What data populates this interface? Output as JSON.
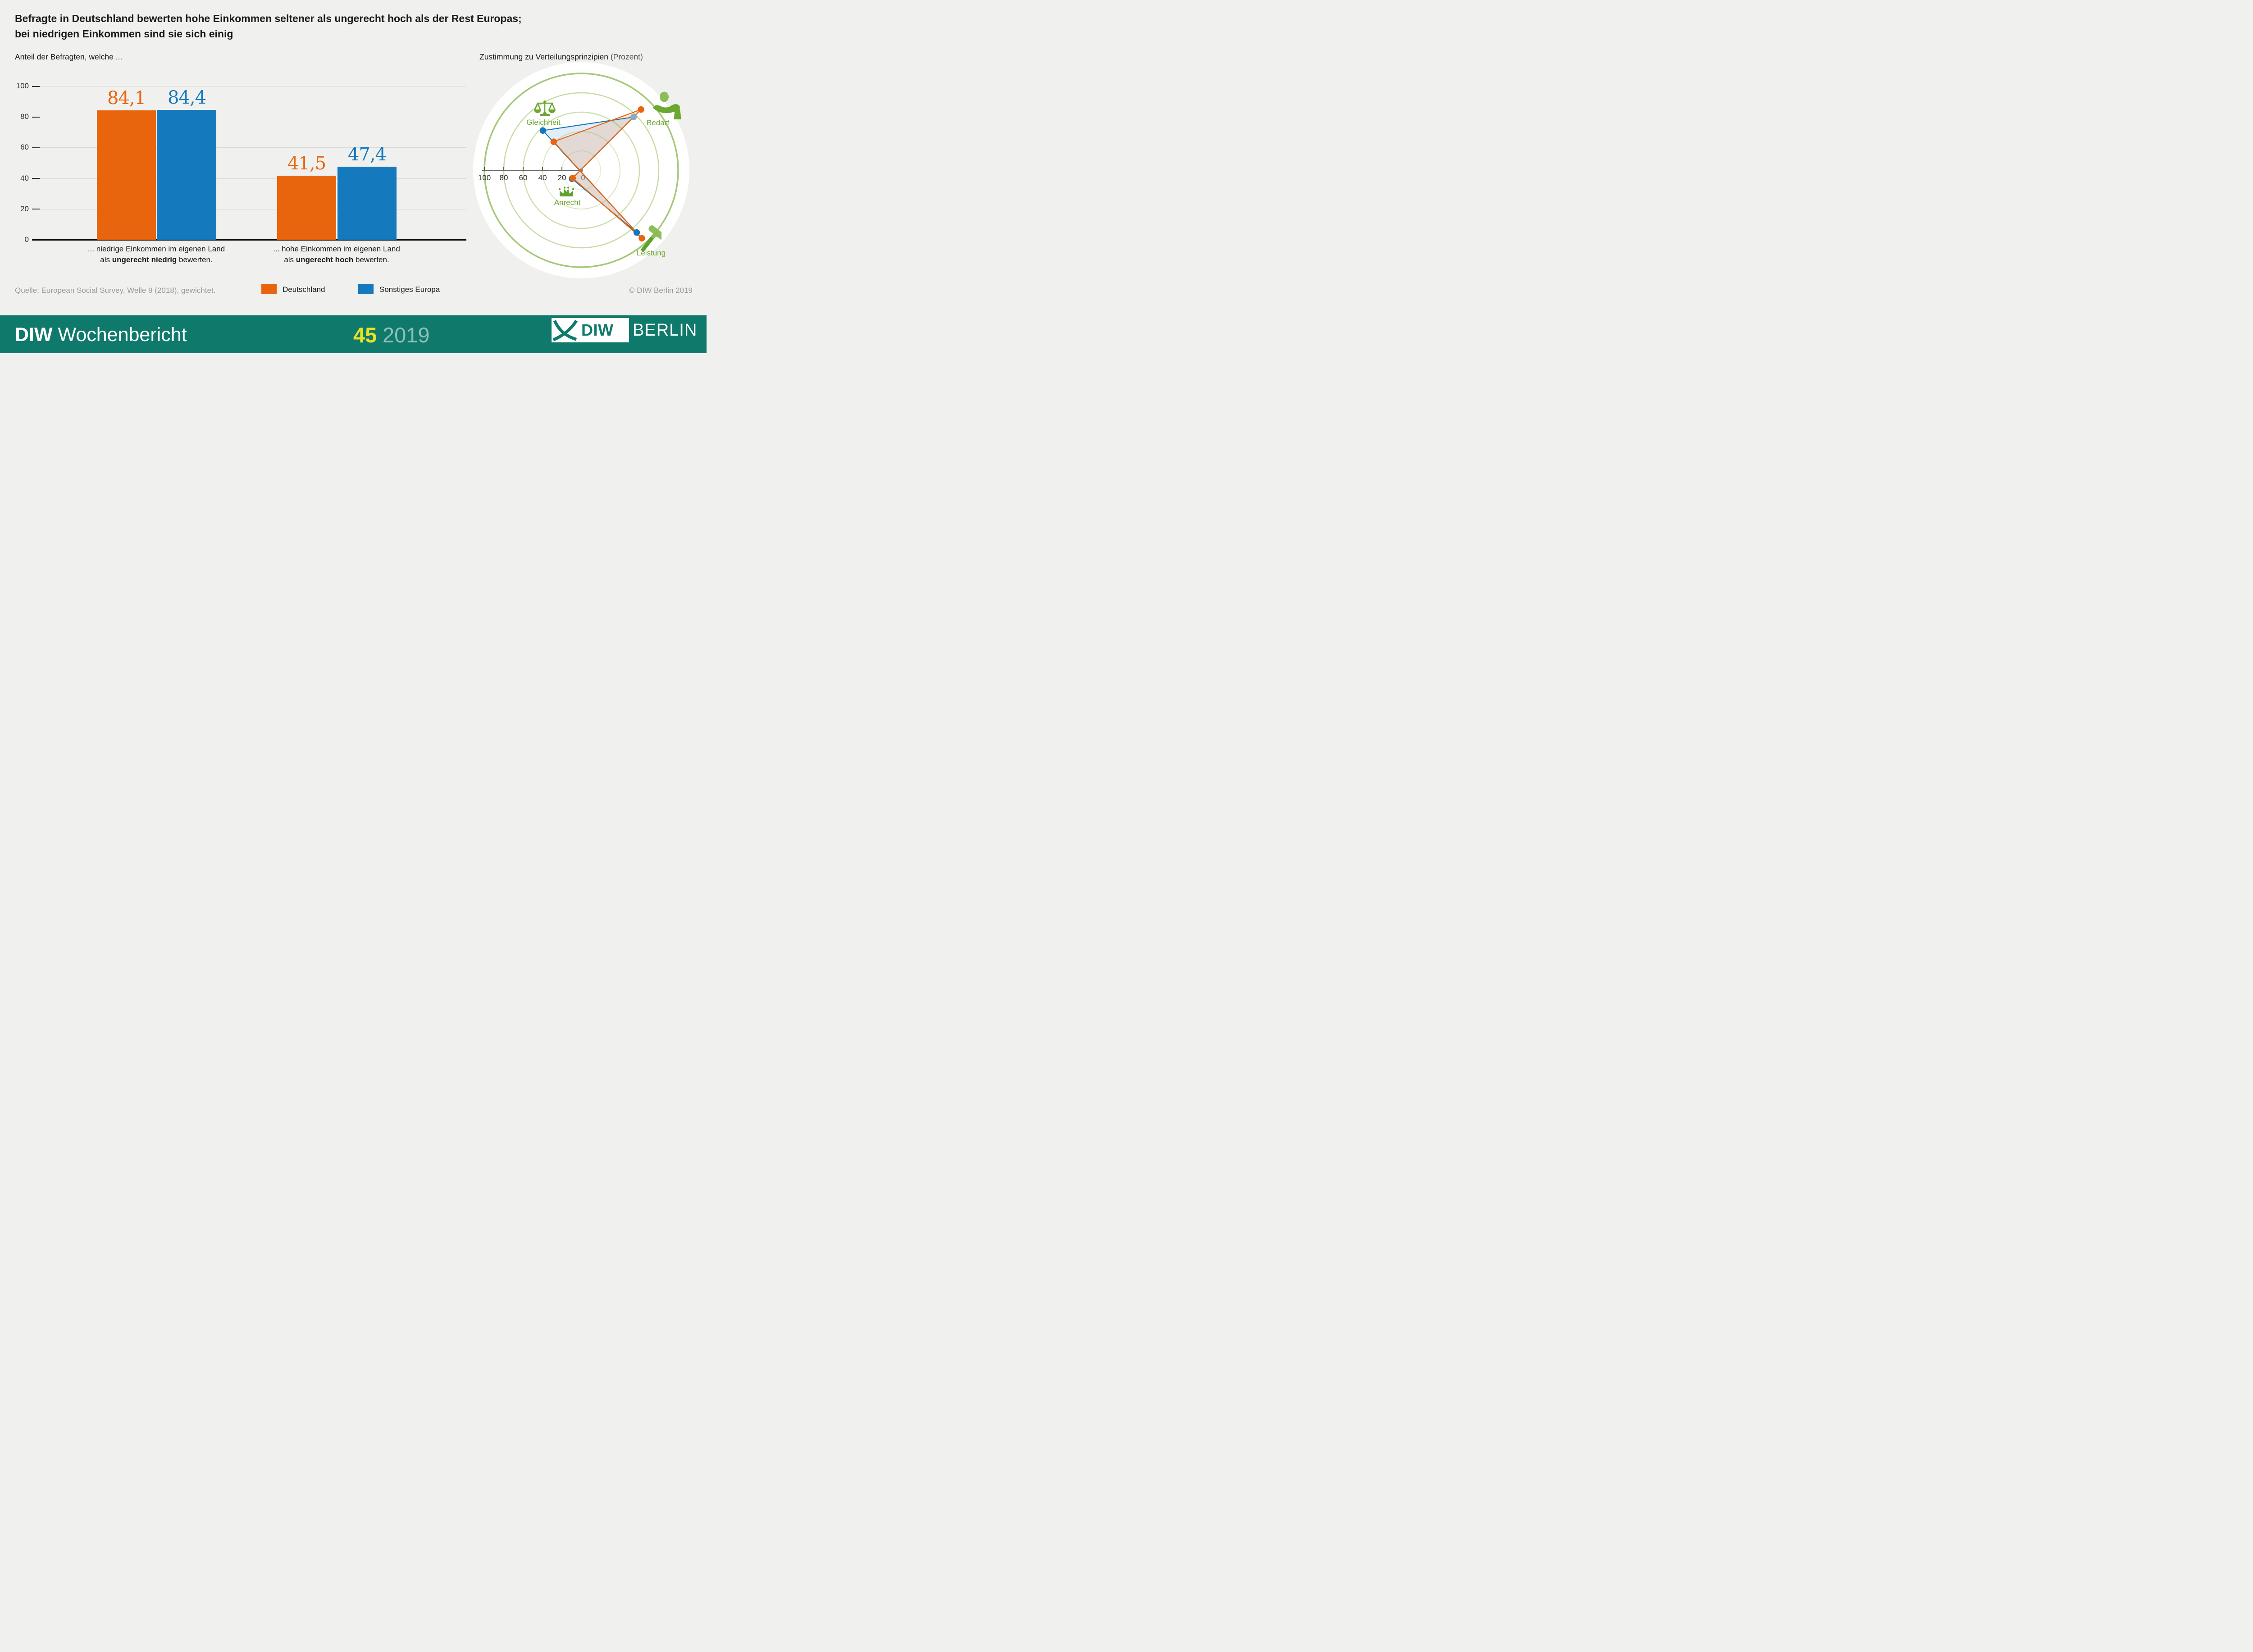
{
  "title": {
    "line1": "Befragte in Deutschland bewerten hohe Einkommen seltener als ungerecht hoch als der Rest Europas;",
    "line2": "bei niedrigen Einkommen sind sie sich einig"
  },
  "source": "Quelle: European Social Survey, Welle 9 (2018), gewichtet.",
  "copyright": "© DIW Berlin 2019",
  "footer": {
    "brand_bold": "DIW",
    "brand_regular": "Wochenbericht",
    "issue": "45",
    "year": "2019",
    "logo_diw": "DIW",
    "logo_berlin": "BERLIN"
  },
  "colors": {
    "background": "#f0f0ee",
    "germany_orange": "#E8640D",
    "europe_blue": "#1579BE",
    "footer_teal": "#0F7A6C",
    "issue_yellow": "#E7E324",
    "year_teal_gray": "#8FBFB7",
    "icon_green": "#6BA82F",
    "ring_green_outer": "#A6C878",
    "gray_text": "#9a9a9a"
  },
  "chart_data": [
    {
      "type": "bar",
      "title": "Anteil der Befragten, welche ...",
      "ylabel": "",
      "ylim": [
        0,
        100
      ],
      "yticks": [
        0,
        20,
        40,
        60,
        80,
        100
      ],
      "grid": true,
      "categories": [
        {
          "line1": "... niedrige Einkommen im eigenen Land",
          "line2_pre": "als ",
          "line2_bold": "ungerecht niedrig",
          "line2_post": " bewerten."
        },
        {
          "line1": "... hohe Einkommen im eigenen Land",
          "line2_pre": "als ",
          "line2_bold": "ungerecht hoch",
          "line2_post": " bewerten."
        }
      ],
      "series": [
        {
          "name": "Deutschland",
          "color": "#E8640D",
          "values": [
            84.1,
            41.5
          ],
          "value_labels": [
            "84,1",
            "41,5"
          ]
        },
        {
          "name": "Sonstiges Europa",
          "color": "#1579BE",
          "values": [
            84.4,
            47.4
          ],
          "value_labels": [
            "84,4",
            "47,4"
          ]
        }
      ]
    },
    {
      "type": "radar",
      "title": "Zustimmung zu Verteilungsprinzipien",
      "title_suffix": "(Prozent)",
      "scale": {
        "min": 0,
        "max": 100,
        "ticks": [
          100,
          80,
          60,
          40,
          20,
          0
        ]
      },
      "ring_values": [
        20,
        40,
        60,
        80,
        100
      ],
      "axes": [
        {
          "label": "Gleichheit",
          "icon": "scales-icon",
          "angle_deg": 134
        },
        {
          "label": "Bedarf",
          "icon": "giving-hand-icon",
          "angle_deg": 45.5
        },
        {
          "label": "Anrecht",
          "icon": "crown-icon",
          "angle_deg": 222
        },
        {
          "label": "Leistung",
          "icon": "hammer-icon",
          "angle_deg": -48.3
        }
      ],
      "series": [
        {
          "name": "Sonstiges Europa",
          "color": "#1579BE",
          "fill": "rgba(21,121,190,0.13)",
          "values": [
            57,
            77,
            13,
            86
          ],
          "dot_colors": [
            "#1377BD",
            "#86ABC3",
            "#1377BD",
            "#1377BD"
          ]
        },
        {
          "name": "Deutschland",
          "color": "#E8640D",
          "fill": "rgba(232,100,13,0.15)",
          "values": [
            41,
            88,
            12,
            94
          ],
          "dot_colors": [
            "#E8640D",
            "#E8640D",
            "#E8640D",
            "#E8640D"
          ]
        }
      ]
    }
  ]
}
